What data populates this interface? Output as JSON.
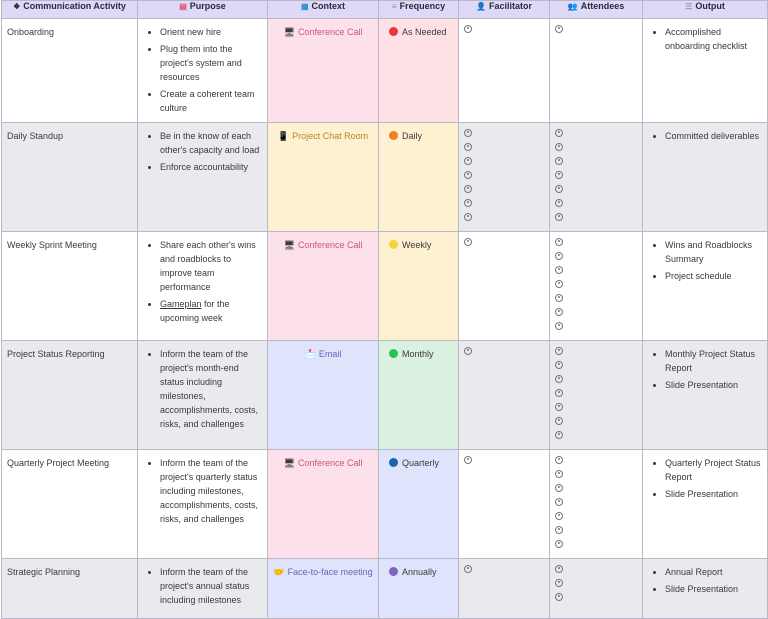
{
  "headers": {
    "activity": {
      "icon": "❖",
      "label": "Communication Activity"
    },
    "purpose": {
      "icon": "▤",
      "label": "Purpose"
    },
    "context": {
      "icon": "▦",
      "label": "Context"
    },
    "frequency": {
      "icon": "≡",
      "label": "Frequency"
    },
    "facilitator": {
      "icon": "👤",
      "label": "Facilitator"
    },
    "attendees": {
      "icon": "👥",
      "label": "Attendees"
    },
    "output": {
      "icon": "☰",
      "label": "Output"
    }
  },
  "colors": {
    "as_needed": "#e8343a",
    "daily": "#f57c22",
    "weekly": "#f4d23c",
    "monthly": "#27c255",
    "quarterly": "#1a63b0",
    "annually": "#8064c4"
  },
  "rows": [
    {
      "activity": "Onboarding",
      "purpose": [
        "Orient new hire",
        "Plug them into the project's system and resources",
        "Create a coherent team culture"
      ],
      "context": {
        "icon": "🖥",
        "label": "Conference Call"
      },
      "frequency": "As Needed",
      "facilitators": 1,
      "attendees": 1,
      "output": [
        "Accomplished onboarding checklist"
      ]
    },
    {
      "activity": "Daily Standup",
      "purpose": [
        "Be in the know of each other's capacity and load",
        "Enforce accountability"
      ],
      "context": {
        "icon": "📱",
        "label": "Project Chat Room"
      },
      "frequency": "Daily",
      "facilitators": 7,
      "attendees": 7,
      "output": [
        "Committed deliverables"
      ]
    },
    {
      "activity": "Weekly Sprint Meeting",
      "purpose_a": "Share each other's wins and roadblocks to improve team performance",
      "purpose_b_link": "Gameplan",
      "purpose_b_rest": " for the upcoming week",
      "context": {
        "icon": "🖥",
        "label": "Conference Call"
      },
      "frequency": "Weekly",
      "facilitators": 1,
      "attendees": 7,
      "output": [
        "Wins and Roadblocks Summary",
        "Project schedule"
      ]
    },
    {
      "activity": "Project Status Reporting",
      "purpose": [
        "Inform the team of the project's month-end status including milestones, accomplishments, costs, risks, and challenges"
      ],
      "context": {
        "icon": "📩",
        "label": "Email"
      },
      "frequency": "Monthly",
      "facilitators": 1,
      "attendees": 7,
      "output": [
        "Monthly Project Status Report",
        "Slide Presentation"
      ]
    },
    {
      "activity": "Quarterly Project Meeting",
      "purpose": [
        "Inform the team of the project's quarterly status including milestones, accomplishments, costs, risks, and challenges"
      ],
      "context": {
        "icon": "🖥",
        "label": "Conference Call"
      },
      "frequency": "Quarterly",
      "facilitators": 1,
      "attendees": 7,
      "output": [
        "Quarterly Project Status Report",
        "Slide Presentation"
      ]
    },
    {
      "activity": "Strategic Planning",
      "purpose": [
        "Inform the team of the project's annual status including milestones"
      ],
      "context": {
        "icon": "🤝",
        "label": "Face-to-face meeting"
      },
      "frequency": "Annually",
      "facilitators": 1,
      "attendees": 3,
      "output": [
        "Annual Report",
        "Slide Presentation"
      ]
    }
  ]
}
